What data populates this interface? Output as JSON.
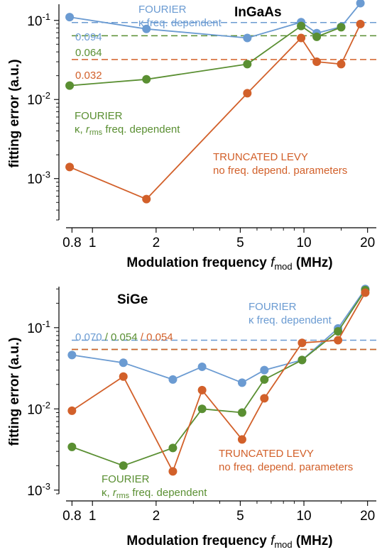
{
  "colors": {
    "fourier_k": "#6b9bd2",
    "fourier_k_rms": "#5a8f32",
    "levy": "#d2602a",
    "axis": "#000000"
  },
  "chart_data": [
    {
      "type": "line",
      "title": "InGaAs",
      "xscale": "log",
      "yscale": "log",
      "xlim": [
        0.75,
        22
      ],
      "ylim": [
        0.0003,
        0.16
      ],
      "xticks": [
        0.8,
        1,
        2,
        5,
        10,
        20
      ],
      "xtick_labels": [
        "0.8",
        "1",
        "2",
        "5",
        "10",
        "20"
      ],
      "yticks": [
        0.001,
        0.01,
        0.1
      ],
      "ytick_labels": [
        {
          "base": "10",
          "exp": "-3"
        },
        {
          "base": "10",
          "exp": "-2"
        },
        {
          "base": "10",
          "exp": "-1"
        }
      ],
      "xlabel": {
        "pre": "Modulation frequency ",
        "f": "f",
        "sub": "mod",
        "post": " (MHz)"
      },
      "ylabel": "fitting error (a.u.)",
      "series": [
        {
          "key": "fourier_k",
          "x": [
            0.78,
            1.8,
            5.4,
            9.7,
            11.5,
            15,
            18.5
          ],
          "values": [
            0.11,
            0.078,
            0.06,
            0.095,
            0.069,
            0.083,
            0.165
          ]
        },
        {
          "key": "fourier_k_rms",
          "x": [
            0.78,
            1.8,
            5.4,
            9.7,
            11.5,
            15
          ],
          "values": [
            0.015,
            0.018,
            0.028,
            0.085,
            0.062,
            0.082
          ]
        },
        {
          "key": "levy",
          "x": [
            0.78,
            1.8,
            5.4,
            9.7,
            11.5,
            15,
            18.5
          ],
          "values": [
            0.0014,
            0.00055,
            0.012,
            0.06,
            0.03,
            0.028,
            0.09
          ]
        }
      ],
      "hlines": [
        {
          "key": "fourier_k",
          "y": 0.094,
          "label": "0.094"
        },
        {
          "key": "fourier_k_rms",
          "y": 0.064,
          "label": "0.064"
        },
        {
          "key": "levy",
          "y": 0.032,
          "label": "0.032"
        }
      ],
      "annotations": [
        {
          "key": "fourier_k",
          "lines": [
            {
              "text": "FOURIER"
            },
            {
              "text": "κ freq. dependent"
            }
          ]
        },
        {
          "key": "fourier_k_rms",
          "lines": [
            {
              "text": "FOURIER"
            },
            {
              "pre": "κ, ",
              "r": "r",
              "sub": "rms",
              "post": " freq. dependent"
            }
          ]
        },
        {
          "key": "levy",
          "lines": [
            {
              "text": "TRUNCATED LEVY"
            },
            {
              "text": "no freq. depend. parameters"
            }
          ]
        }
      ]
    },
    {
      "type": "line",
      "title": "SiGe",
      "xscale": "log",
      "yscale": "log",
      "xlim": [
        0.75,
        22
      ],
      "ylim": [
        0.0009,
        0.32
      ],
      "xticks": [
        0.8,
        1,
        2,
        5,
        10,
        20
      ],
      "xtick_labels": [
        "0.8",
        "1",
        "2",
        "5",
        "10",
        "20"
      ],
      "yticks": [
        0.001,
        0.01,
        0.1
      ],
      "ytick_labels": [
        {
          "base": "10",
          "exp": "-3"
        },
        {
          "base": "10",
          "exp": "-2"
        },
        {
          "base": "10",
          "exp": "-1"
        }
      ],
      "xlabel": {
        "pre": "Modulation frequency ",
        "f": "f",
        "sub": "mod",
        "post": " (MHz)"
      },
      "ylabel": "fitting error (a.u.)",
      "series": [
        {
          "key": "fourier_k",
          "x": [
            0.8,
            1.4,
            2.4,
            3.3,
            5.1,
            6.5,
            9.8,
            14.5,
            19.5
          ],
          "values": [
            0.046,
            0.037,
            0.023,
            0.033,
            0.021,
            0.03,
            0.04,
            0.098,
            0.3
          ]
        },
        {
          "key": "fourier_k_rms",
          "x": [
            0.8,
            1.4,
            2.4,
            3.3,
            5.1,
            6.5,
            9.8,
            14.5,
            19.5
          ],
          "values": [
            0.0034,
            0.002,
            0.0033,
            0.01,
            0.009,
            0.023,
            0.04,
            0.09,
            0.29
          ]
        },
        {
          "key": "levy",
          "x": [
            0.8,
            1.4,
            2.4,
            3.3,
            5.1,
            6.5,
            9.8,
            14.5,
            19.5
          ],
          "values": [
            0.0095,
            0.025,
            0.0017,
            0.017,
            0.0042,
            0.0135,
            0.065,
            0.07,
            0.27
          ]
        }
      ],
      "hlines": [
        {
          "key": "fourier_k",
          "y": 0.07
        },
        {
          "key": "fourier_k_rms",
          "y": 0.054
        },
        {
          "key": "levy",
          "y": 0.054
        }
      ],
      "hline_label": [
        {
          "key": "fourier_k",
          "text": "0.070"
        },
        {
          "key": "fourier_k_rms",
          "text": " / 0.054"
        },
        {
          "key": "levy",
          "text": " / 0.054"
        }
      ],
      "annotations": [
        {
          "key": "fourier_k",
          "lines": [
            {
              "text": "FOURIER"
            },
            {
              "text": "κ freq. dependent"
            }
          ]
        },
        {
          "key": "levy",
          "lines": [
            {
              "text": "TRUNCATED LEVY"
            },
            {
              "text": "no freq. depend. parameters"
            }
          ]
        },
        {
          "key": "fourier_k_rms",
          "lines": [
            {
              "text": "FOURIER"
            },
            {
              "pre": "κ, ",
              "r": "r",
              "sub": "rms",
              "post": " freq. dependent"
            }
          ]
        }
      ]
    }
  ]
}
